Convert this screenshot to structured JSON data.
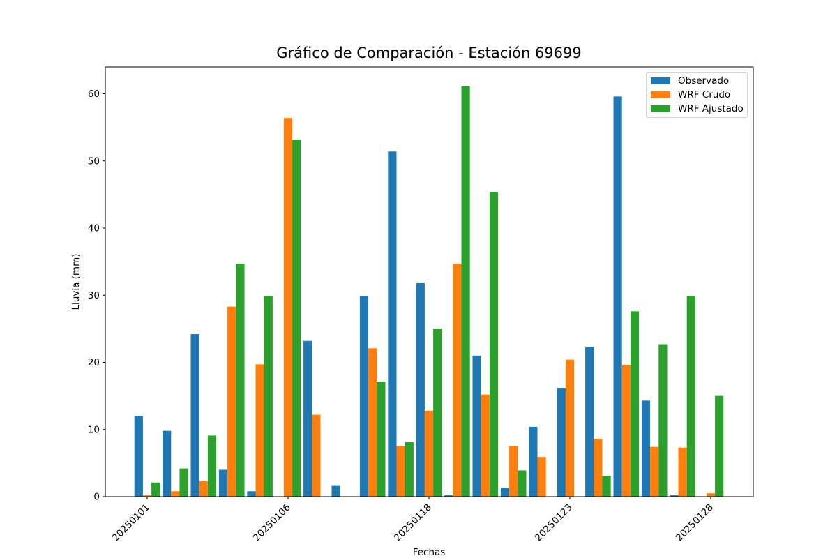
{
  "chart_data": {
    "type": "bar",
    "title": "Gráfico de Comparación - Estación 69699",
    "xlabel": "Fechas",
    "ylabel": "Lluvia (mm)",
    "ylim": [
      0,
      64
    ],
    "yticks": [
      0,
      10,
      20,
      30,
      40,
      50,
      60
    ],
    "grid": false,
    "legend_position": "top-right",
    "xtick_labels": [
      "20250101",
      "20250106",
      "20250118",
      "20250123",
      "20250128"
    ],
    "xtick_positions": [
      0,
      5,
      10,
      15,
      20
    ],
    "categories": [
      "0",
      "1",
      "2",
      "3",
      "4",
      "5",
      "6",
      "7",
      "8",
      "9",
      "10",
      "11",
      "12",
      "13",
      "14",
      "15",
      "16",
      "17",
      "18",
      "19",
      "20"
    ],
    "series": [
      {
        "name": "Observado",
        "color": "#1f77b4",
        "values": [
          12.0,
          9.8,
          24.2,
          4.0,
          0.8,
          0.0,
          23.2,
          1.6,
          29.9,
          51.4,
          31.8,
          0.2,
          21.0,
          1.3,
          10.4,
          16.2,
          22.3,
          59.6,
          14.3,
          0.2,
          0.0
        ]
      },
      {
        "name": "WRF Crudo",
        "color": "#ff7f0e",
        "values": [
          0.2,
          0.8,
          2.3,
          28.3,
          19.7,
          56.4,
          12.2,
          0.0,
          22.1,
          7.5,
          12.8,
          34.7,
          15.2,
          7.5,
          5.9,
          20.4,
          8.6,
          19.6,
          7.4,
          7.3,
          0.5
        ]
      },
      {
        "name": "WRF Ajustado",
        "color": "#2ca02c",
        "values": [
          2.1,
          4.2,
          9.1,
          34.7,
          29.9,
          53.2,
          0.0,
          0.0,
          17.1,
          8.1,
          25.0,
          61.1,
          45.4,
          3.9,
          0.0,
          0.0,
          3.1,
          27.6,
          22.7,
          29.9,
          15.0
        ]
      }
    ]
  }
}
